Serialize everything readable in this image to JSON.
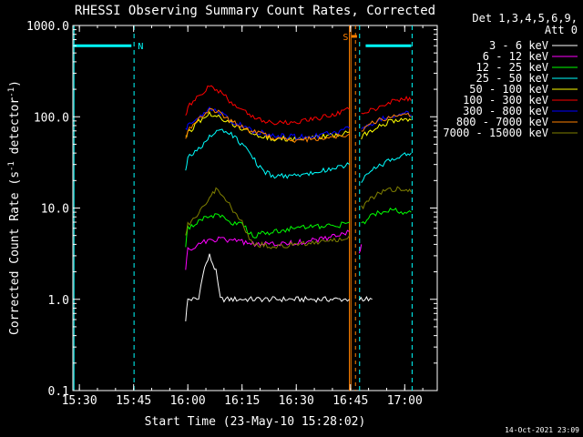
{
  "chart_data": {
    "type": "line",
    "title": "RHESSI Observing Summary Count Rates, Corrected",
    "xlabel": "Start Time (23-May-10 15:28:02)",
    "ylabel_main": "Corrected Count Rate (s",
    "ylabel_sup1": "-1",
    "ylabel_mid": " detector",
    "ylabel_sup2": "-1",
    "ylabel_end": ")",
    "yscale": "log",
    "ylim": [
      0.1,
      1000
    ],
    "xlim_minutes": [
      15.47,
      17.15
    ],
    "x_ticks": [
      {
        "label": "15:30",
        "t": 15.5
      },
      {
        "label": "15:45",
        "t": 15.75
      },
      {
        "label": "16:00",
        "t": 16.0
      },
      {
        "label": "16:15",
        "t": 16.25
      },
      {
        "label": "16:30",
        "t": 16.5
      },
      {
        "label": "16:45",
        "t": 16.75
      },
      {
        "label": "17:00",
        "t": 17.0
      }
    ],
    "y_ticks": [
      {
        "label": "0.1",
        "v": 0.1
      },
      {
        "label": "1.0",
        "v": 1
      },
      {
        "label": "10.0",
        "v": 10
      },
      {
        "label": "100.0",
        "v": 100
      },
      {
        "label": "1000.0",
        "v": 1000
      }
    ],
    "legend_header": [
      "Det 1,3,4,5,6,9,",
      "Att 0"
    ],
    "legend_position": "top-right",
    "series": [
      {
        "name": "3 - 6 keV",
        "color": "#ffffff",
        "segments": [
          {
            "points": [
              [
                15.99,
                0.6
              ],
              [
                16.0,
                1.0
              ],
              [
                16.05,
                1.0
              ],
              [
                16.07,
                2.0
              ],
              [
                16.1,
                3.0
              ],
              [
                16.13,
                2.0
              ],
              [
                16.15,
                1.0
              ],
              [
                16.3,
                1.0
              ],
              [
                16.45,
                1.0
              ],
              [
                16.55,
                1.0
              ],
              [
                16.7,
                1.0
              ],
              [
                16.745,
                1.0
              ]
            ]
          },
          {
            "points": [
              [
                16.79,
                1.0
              ],
              [
                16.85,
                1.0
              ]
            ]
          }
        ]
      },
      {
        "name": "6 - 12 keV",
        "color": "#ff00ff",
        "segments": [
          {
            "points": [
              [
                15.99,
                2.2
              ],
              [
                16.0,
                3.5
              ],
              [
                16.05,
                4.0
              ],
              [
                16.1,
                4.5
              ],
              [
                16.15,
                4.5
              ],
              [
                16.2,
                4.5
              ],
              [
                16.3,
                4.0
              ],
              [
                16.4,
                4.0
              ],
              [
                16.5,
                4.2
              ],
              [
                16.6,
                4.5
              ],
              [
                16.7,
                5.0
              ],
              [
                16.745,
                5.5
              ]
            ]
          },
          {
            "points": [
              [
                16.79,
                3.0
              ],
              [
                16.8,
                4.0
              ]
            ]
          }
        ]
      },
      {
        "name": "12 - 25 keV",
        "color": "#00ff00",
        "segments": [
          {
            "points": [
              [
                15.99,
                4.0
              ],
              [
                16.0,
                6.0
              ],
              [
                16.05,
                7.0
              ],
              [
                16.1,
                8.5
              ],
              [
                16.15,
                8.0
              ],
              [
                16.2,
                7.0
              ],
              [
                16.25,
                6.5
              ],
              [
                16.3,
                5.0
              ],
              [
                16.4,
                5.5
              ],
              [
                16.5,
                6.0
              ],
              [
                16.6,
                6.2
              ],
              [
                16.7,
                6.5
              ],
              [
                16.745,
                7.0
              ]
            ]
          },
          {
            "points": [
              [
                16.8,
                6.5
              ],
              [
                16.85,
                8.5
              ],
              [
                16.9,
                9.0
              ],
              [
                16.95,
                9.5
              ],
              [
                17.0,
                9.0
              ],
              [
                17.03,
                9.0
              ]
            ]
          }
        ]
      },
      {
        "name": "25 - 50 keV",
        "color": "#00ffff",
        "segments": [
          {
            "points": [
              [
                15.99,
                25
              ],
              [
                16.0,
                37
              ],
              [
                16.05,
                45
              ],
              [
                16.1,
                60
              ],
              [
                16.15,
                70
              ],
              [
                16.2,
                65
              ],
              [
                16.25,
                50
              ],
              [
                16.3,
                35
              ],
              [
                16.35,
                25
              ],
              [
                16.4,
                22
              ],
              [
                16.5,
                23
              ],
              [
                16.6,
                25
              ],
              [
                16.7,
                28
              ],
              [
                16.745,
                30
              ]
            ]
          },
          {
            "points": [
              [
                16.8,
                20
              ],
              [
                16.85,
                26
              ],
              [
                16.9,
                30
              ],
              [
                16.95,
                35
              ],
              [
                17.0,
                40
              ],
              [
                17.03,
                40
              ]
            ]
          }
        ]
      },
      {
        "name": "50 - 100 keV",
        "color": "#ffff00",
        "segments": [
          {
            "points": [
              [
                15.99,
                60
              ],
              [
                16.0,
                65
              ],
              [
                16.05,
                90
              ],
              [
                16.1,
                110
              ],
              [
                16.15,
                100
              ],
              [
                16.2,
                85
              ],
              [
                16.3,
                65
              ],
              [
                16.4,
                58
              ],
              [
                16.5,
                57
              ],
              [
                16.6,
                60
              ],
              [
                16.7,
                63
              ],
              [
                16.745,
                68
              ]
            ]
          },
          {
            "points": [
              [
                16.8,
                60
              ],
              [
                16.85,
                72
              ],
              [
                16.9,
                82
              ],
              [
                16.95,
                92
              ],
              [
                17.0,
                95
              ],
              [
                17.03,
                92
              ]
            ]
          }
        ]
      },
      {
        "name": "100 - 300 keV",
        "color": "#ff0000",
        "segments": [
          {
            "points": [
              [
                15.99,
                110
              ],
              [
                16.0,
                125
              ],
              [
                16.05,
                175
              ],
              [
                16.1,
                215
              ],
              [
                16.15,
                185
              ],
              [
                16.2,
                145
              ],
              [
                16.25,
                115
              ],
              [
                16.3,
                100
              ],
              [
                16.35,
                88
              ],
              [
                16.4,
                85
              ],
              [
                16.5,
                88
              ],
              [
                16.6,
                95
              ],
              [
                16.7,
                110
              ],
              [
                16.745,
                120
              ]
            ]
          },
          {
            "points": [
              [
                16.8,
                105
              ],
              [
                16.85,
                120
              ],
              [
                16.9,
                135
              ],
              [
                16.95,
                150
              ],
              [
                17.0,
                160
              ],
              [
                17.03,
                150
              ]
            ]
          }
        ]
      },
      {
        "name": "300 - 800 keV",
        "color": "#0000ff",
        "segments": [
          {
            "points": [
              [
                15.99,
                70
              ],
              [
                16.0,
                80
              ],
              [
                16.05,
                95
              ],
              [
                16.1,
                120
              ],
              [
                16.15,
                110
              ],
              [
                16.2,
                90
              ],
              [
                16.3,
                70
              ],
              [
                16.4,
                62
              ],
              [
                16.5,
                60
              ],
              [
                16.6,
                62
              ],
              [
                16.7,
                68
              ],
              [
                16.745,
                75
              ]
            ]
          },
          {
            "points": [
              [
                16.8,
                75
              ],
              [
                16.85,
                85
              ],
              [
                16.9,
                95
              ],
              [
                16.95,
                105
              ],
              [
                17.0,
                110
              ],
              [
                17.03,
                105
              ]
            ]
          }
        ]
      },
      {
        "name": "800 - 7000 keV",
        "color": "#ff8000",
        "segments": [
          {
            "points": [
              [
                15.99,
                60
              ],
              [
                16.0,
                70
              ],
              [
                16.05,
                95
              ],
              [
                16.1,
                120
              ],
              [
                16.15,
                110
              ],
              [
                16.2,
                90
              ],
              [
                16.3,
                68
              ],
              [
                16.4,
                58
              ],
              [
                16.5,
                56
              ],
              [
                16.6,
                57
              ],
              [
                16.7,
                62
              ],
              [
                16.745,
                65
              ]
            ]
          },
          {
            "points": [
              [
                16.8,
                70
              ],
              [
                16.85,
                85
              ],
              [
                16.9,
                95
              ],
              [
                16.95,
                100
              ],
              [
                17.0,
                105
              ],
              [
                17.03,
                100
              ]
            ]
          }
        ]
      },
      {
        "name": "7000 - 15000 keV",
        "color": "#808000",
        "segments": [
          {
            "points": [
              [
                15.99,
                5.0
              ],
              [
                16.0,
                6.5
              ],
              [
                16.05,
                9.0
              ],
              [
                16.1,
                13
              ],
              [
                16.13,
                16
              ],
              [
                16.15,
                15
              ],
              [
                16.2,
                10
              ],
              [
                16.25,
                7
              ],
              [
                16.3,
                4.0
              ],
              [
                16.4,
                3.8
              ],
              [
                16.5,
                4.0
              ],
              [
                16.6,
                4.2
              ],
              [
                16.7,
                4.5
              ],
              [
                16.745,
                5.0
              ]
            ]
          },
          {
            "points": [
              [
                16.8,
                10
              ],
              [
                16.85,
                13
              ],
              [
                16.9,
                15
              ],
              [
                16.95,
                16
              ],
              [
                17.0,
                16
              ],
              [
                17.03,
                15
              ]
            ]
          }
        ]
      }
    ],
    "markers": {
      "night_bars": [
        {
          "t0": 15.47,
          "t1": 15.74,
          "v": 600
        },
        {
          "t0": 16.82,
          "t1": 17.03,
          "v": 600
        }
      ],
      "night_label": "N",
      "night_label_t": 15.77,
      "saa_label": "S",
      "saa_label_t": 16.74,
      "saa_bar": {
        "t0": 16.755,
        "t1": 16.78,
        "v": 760
      },
      "cyan_dashed_t": [
        15.752,
        16.792,
        17.034
      ],
      "cyan_solid_t": [
        15.475
      ],
      "orange_solid_t": [
        16.745,
        16.752
      ],
      "black_dotted_t": [
        16.773
      ]
    },
    "colors": {
      "background": "#000000",
      "axes": "#ffffff",
      "night": "#00ffff",
      "saa": "#ff8000"
    }
  },
  "footer_date": "14-Oct-2021 23:09"
}
